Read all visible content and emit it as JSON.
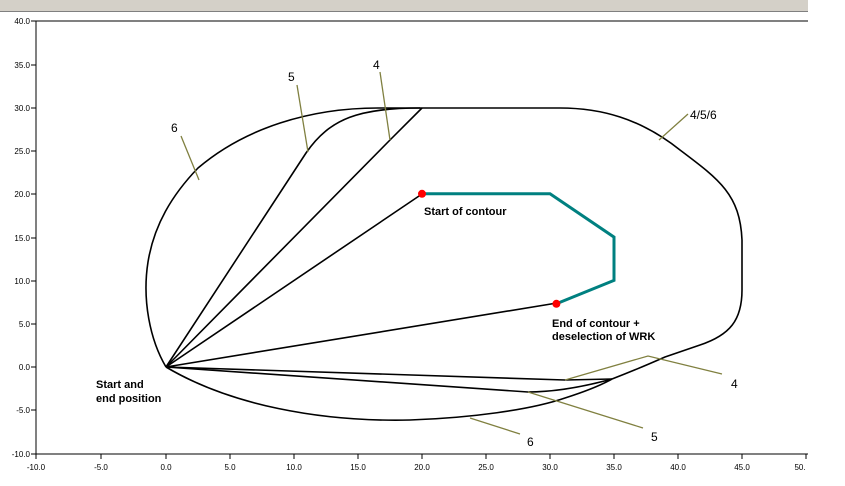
{
  "chart_data": {
    "type": "diagram",
    "x_ticks": [
      "-10.0",
      "-5.0",
      "0.0",
      "5.0",
      "10.0",
      "15.0",
      "20.0",
      "25.0",
      "30.0",
      "35.0",
      "40.0",
      "45.0",
      "50."
    ],
    "y_ticks": [
      "40.0",
      "35.0",
      "30.0",
      "25.0",
      "20.0",
      "15.0",
      "10.0",
      "5.0",
      "0.0",
      "-5.0",
      "-10.0"
    ],
    "xlim": [
      -10,
      50
    ],
    "ylim": [
      -10,
      40
    ],
    "annotations": {
      "start_end": [
        "Start and",
        "end position"
      ],
      "start_contour": "Start of contour",
      "end_contour": [
        "End of contour +",
        "deselection of  WRK"
      ]
    },
    "callouts": {
      "c456": "4/5/6",
      "c6_top": "6",
      "c5_top": "5",
      "c4_top": "4",
      "c4_bot": "4",
      "c5_bot": "5",
      "c6_bot": "6"
    },
    "colors": {
      "path": "#000000",
      "contour": "#008080",
      "marker": "#ff0000",
      "leader": "#808040"
    },
    "contour": [
      [
        20,
        20
      ],
      [
        30,
        20
      ],
      [
        35,
        15
      ],
      [
        35,
        10
      ],
      [
        30.5,
        7.3
      ]
    ],
    "contour_start": [
      20,
      20
    ],
    "contour_end": [
      30.5,
      7.3
    ]
  }
}
